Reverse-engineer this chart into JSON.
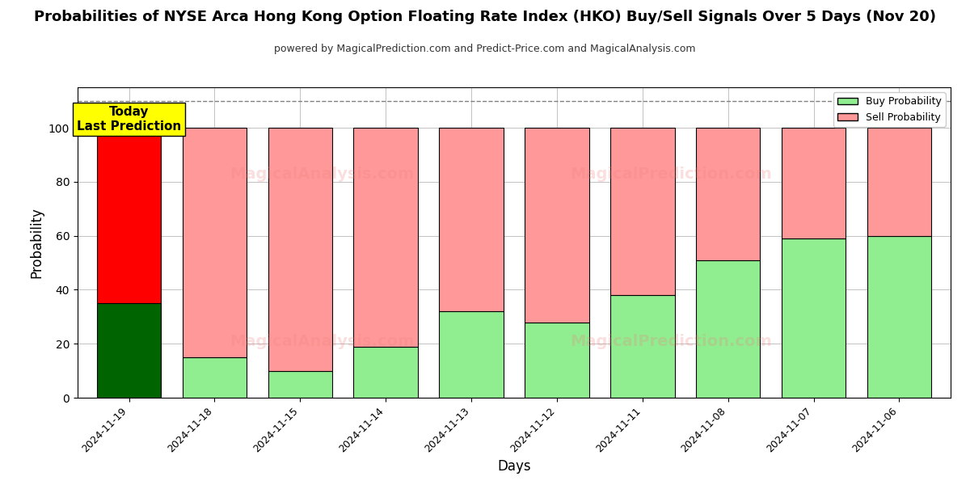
{
  "title": "Probabilities of NYSE Arca Hong Kong Option Floating Rate Index (HKO) Buy/Sell Signals Over 5 Days (Nov 20)",
  "subtitle": "powered by MagicalPrediction.com and Predict-Price.com and MagicalAnalysis.com",
  "xlabel": "Days",
  "ylabel": "Probability",
  "dates": [
    "2024-11-19",
    "2024-11-18",
    "2024-11-15",
    "2024-11-14",
    "2024-11-13",
    "2024-11-12",
    "2024-11-11",
    "2024-11-08",
    "2024-11-07",
    "2024-11-06"
  ],
  "buy_probs": [
    35,
    15,
    10,
    19,
    32,
    28,
    38,
    51,
    59,
    60
  ],
  "sell_probs": [
    65,
    85,
    90,
    81,
    68,
    72,
    62,
    49,
    41,
    40
  ],
  "buy_colors": [
    "#006400",
    "#90EE90",
    "#90EE90",
    "#90EE90",
    "#90EE90",
    "#90EE90",
    "#90EE90",
    "#90EE90",
    "#90EE90",
    "#90EE90"
  ],
  "sell_colors": [
    "#FF0000",
    "#FF9999",
    "#FF9999",
    "#FF9999",
    "#FF9999",
    "#FF9999",
    "#FF9999",
    "#FF9999",
    "#FF9999",
    "#FF9999"
  ],
  "today_label": "Today\nLast Prediction",
  "dashed_line_y": 110,
  "ylim": [
    0,
    115
  ],
  "legend_buy_color": "#90EE90",
  "legend_sell_color": "#FF9999",
  "legend_buy_label": "Buy Probability",
  "legend_sell_label": "Sell Probability",
  "grid_color": "#aaaaaa",
  "bar_width": 0.75,
  "yticks": [
    0,
    20,
    40,
    60,
    80,
    100
  ],
  "title_fontsize": 13,
  "subtitle_fontsize": 9,
  "xlabel_fontsize": 12,
  "ylabel_fontsize": 12,
  "tick_fontsize": 9
}
